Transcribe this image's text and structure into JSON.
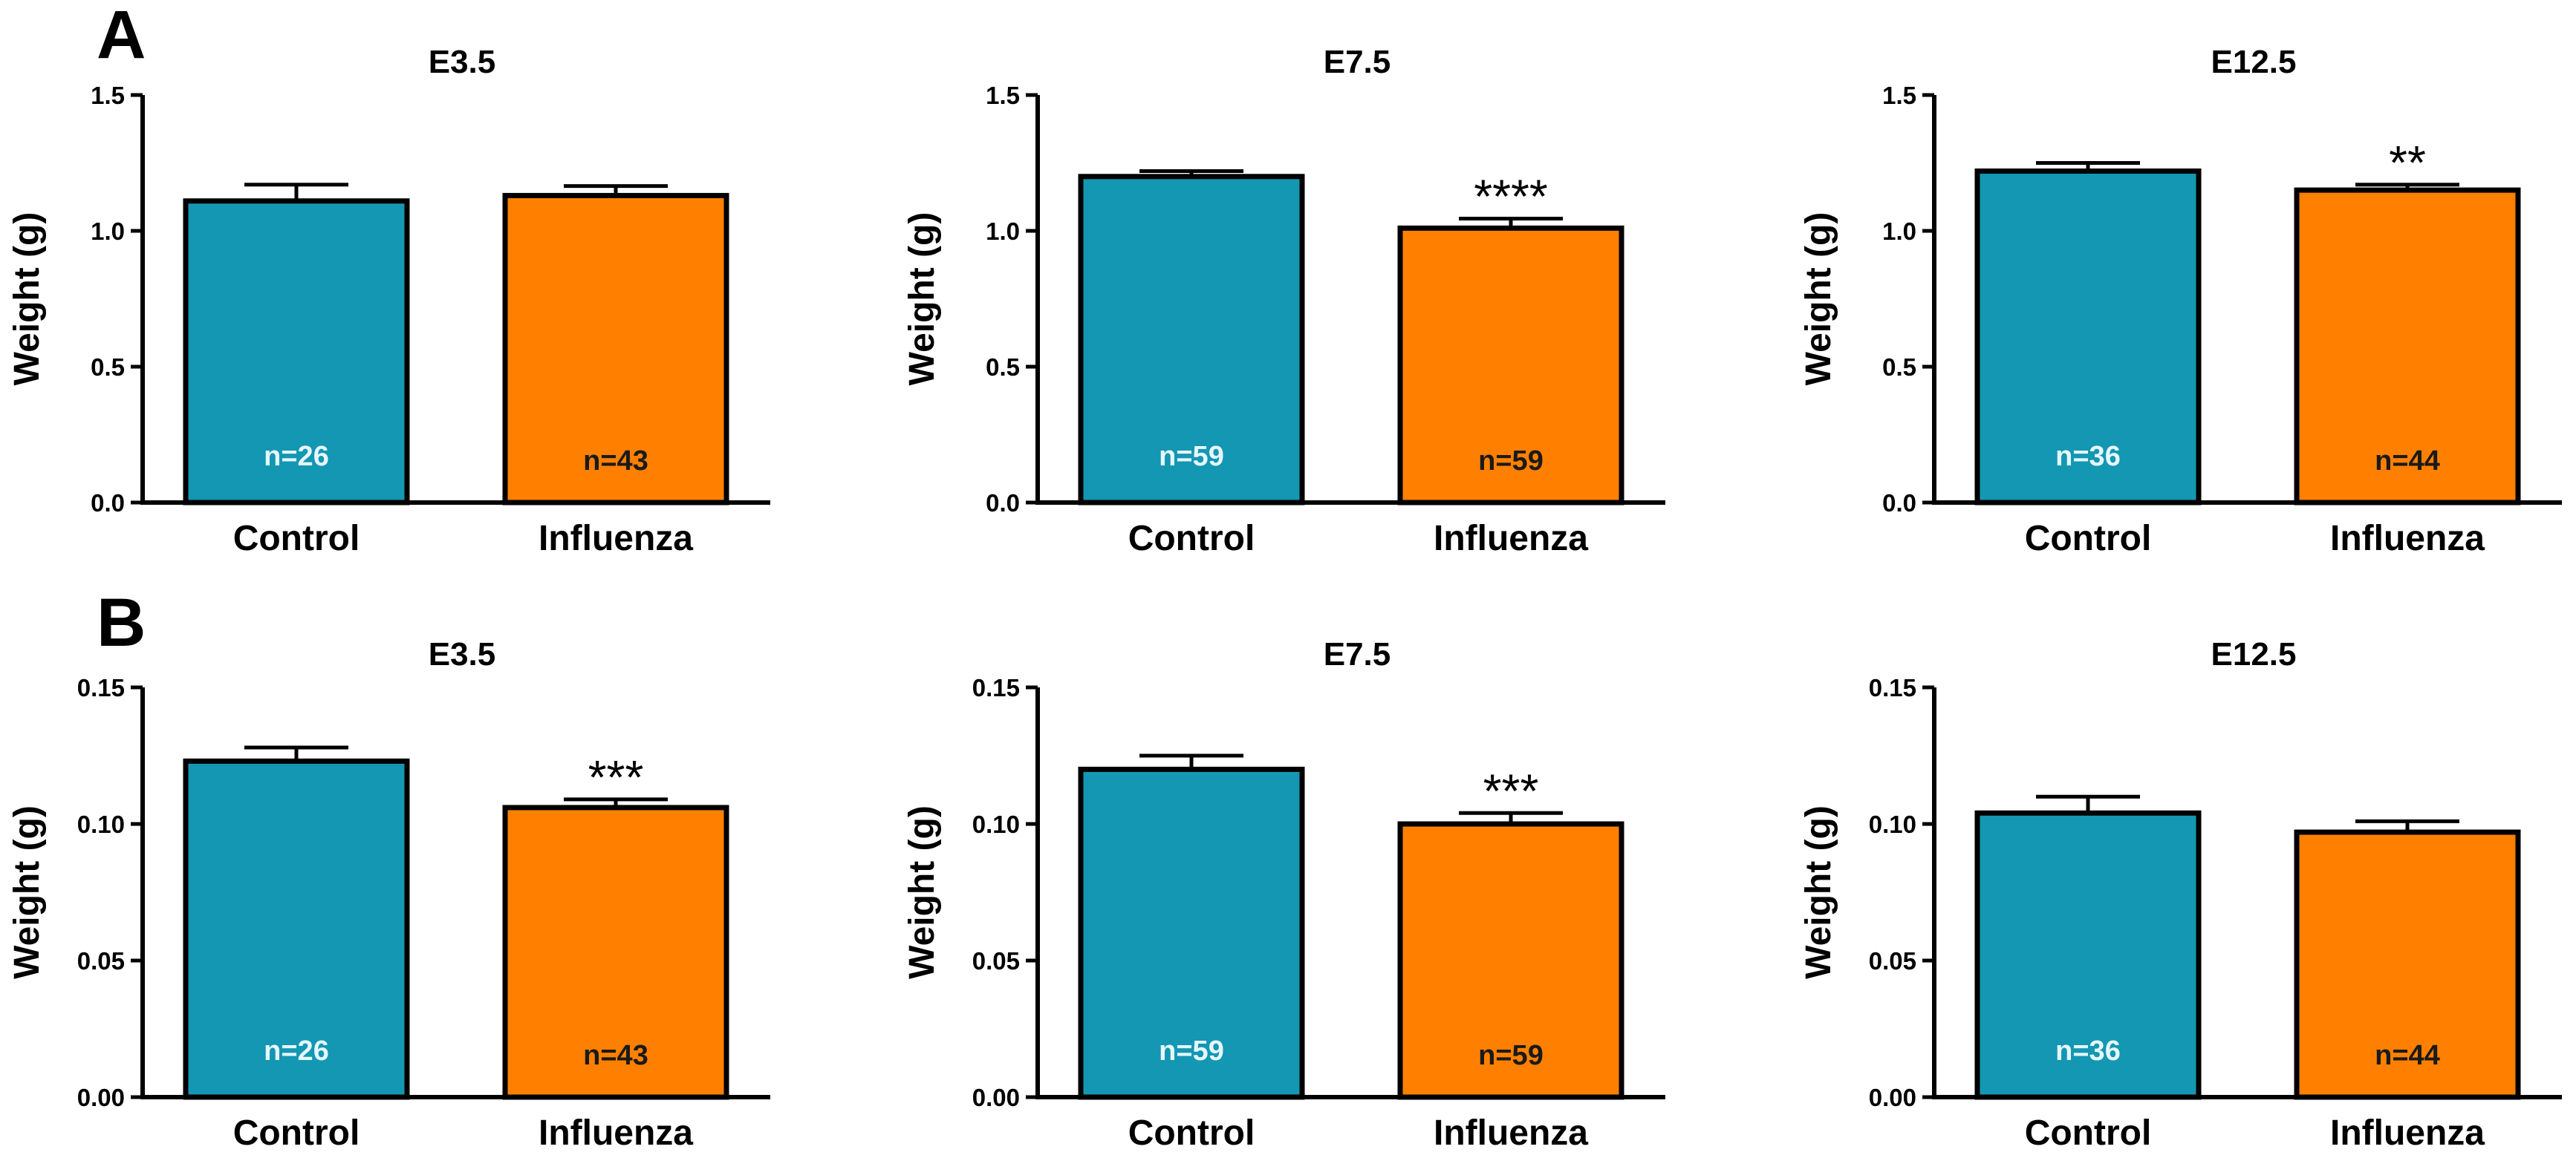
{
  "figure": {
    "panel_letters": [
      "A",
      "B"
    ],
    "colors": {
      "control": "#1497B2",
      "influenza": "#FF8000",
      "outline": "#000000",
      "n_text_control": "#E6F7FF",
      "n_text_influenza": "#1A1A1A"
    }
  },
  "chart_data": [
    {
      "type": "bar",
      "panel": "A",
      "title": "E3.5",
      "categories": [
        "Control",
        "Influenza"
      ],
      "values": [
        1.11,
        1.13
      ],
      "errors": [
        0.06,
        0.035
      ],
      "n_labels": [
        "n=26",
        "n=43"
      ],
      "significance": "",
      "ylabel": "Weight (g)",
      "ylim": [
        0,
        1.5
      ],
      "yticks": [
        0,
        0.5,
        1.0,
        1.5
      ],
      "ytick_labels": [
        "0.0",
        "0.5",
        "1.0",
        "1.5"
      ]
    },
    {
      "type": "bar",
      "panel": "A",
      "title": "E7.5",
      "categories": [
        "Control",
        "Influenza"
      ],
      "values": [
        1.2,
        1.01
      ],
      "errors": [
        0.02,
        0.035
      ],
      "n_labels": [
        "n=59",
        "n=59"
      ],
      "significance": "****",
      "ylabel": "Weight (g)",
      "ylim": [
        0,
        1.5
      ],
      "yticks": [
        0,
        0.5,
        1.0,
        1.5
      ],
      "ytick_labels": [
        "0.0",
        "0.5",
        "1.0",
        "1.5"
      ]
    },
    {
      "type": "bar",
      "panel": "A",
      "title": "E12.5",
      "categories": [
        "Control",
        "Influenza"
      ],
      "values": [
        1.22,
        1.15
      ],
      "errors": [
        0.03,
        0.02
      ],
      "n_labels": [
        "n=36",
        "n=44"
      ],
      "significance": "**",
      "ylabel": "Weight (g)",
      "ylim": [
        0,
        1.5
      ],
      "yticks": [
        0,
        0.5,
        1.0,
        1.5
      ],
      "ytick_labels": [
        "0.0",
        "0.5",
        "1.0",
        "1.5"
      ]
    },
    {
      "type": "bar",
      "panel": "B",
      "title": "E3.5",
      "categories": [
        "Control",
        "Influenza"
      ],
      "values": [
        0.123,
        0.106
      ],
      "errors": [
        0.005,
        0.003
      ],
      "n_labels": [
        "n=26",
        "n=43"
      ],
      "significance": "***",
      "ylabel": "Weight (g)",
      "ylim": [
        0,
        0.15
      ],
      "yticks": [
        0,
        0.05,
        0.1,
        0.15
      ],
      "ytick_labels": [
        "0.00",
        "0.05",
        "0.10",
        "0.15"
      ]
    },
    {
      "type": "bar",
      "panel": "B",
      "title": "E7.5",
      "categories": [
        "Control",
        "Influenza"
      ],
      "values": [
        0.12,
        0.1
      ],
      "errors": [
        0.005,
        0.004
      ],
      "n_labels": [
        "n=59",
        "n=59"
      ],
      "significance": "***",
      "ylabel": "Weight (g)",
      "ylim": [
        0,
        0.15
      ],
      "yticks": [
        0,
        0.05,
        0.1,
        0.15
      ],
      "ytick_labels": [
        "0.00",
        "0.05",
        "0.10",
        "0.15"
      ]
    },
    {
      "type": "bar",
      "panel": "B",
      "title": "E12.5",
      "categories": [
        "Control",
        "Influenza"
      ],
      "values": [
        0.104,
        0.097
      ],
      "errors": [
        0.006,
        0.004
      ],
      "n_labels": [
        "n=36",
        "n=44"
      ],
      "significance": "",
      "ylabel": "Weight (g)",
      "ylim": [
        0,
        0.15
      ],
      "yticks": [
        0,
        0.05,
        0.1,
        0.15
      ],
      "ytick_labels": [
        "0.00",
        "0.05",
        "0.10",
        "0.15"
      ]
    }
  ]
}
